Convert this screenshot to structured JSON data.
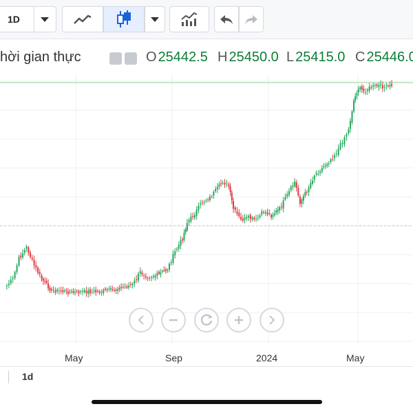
{
  "toolbar": {
    "interval_label": "1D"
  },
  "legend": {
    "title_fragment": "hời gian thực",
    "open_key": "O",
    "open_value": "25442.5",
    "high_key": "H",
    "high_value": "25450.0",
    "low_key": "L",
    "low_value": "25415.0",
    "close_key": "C",
    "close_value": "25446.0",
    "up_color": "#0b7d35"
  },
  "x_axis": {
    "labels": [
      "May",
      "Sep",
      "2024",
      "May"
    ]
  },
  "bottom": {
    "range_label": "1d"
  },
  "chart_data": {
    "type": "candlestick",
    "colors": {
      "up": "#26a65b",
      "down": "#e0383e",
      "grid": "#eceff3",
      "last_price_line": "#8fd18f",
      "dashed_line": "#b8bdc6"
    },
    "points": [
      [
        "2023-01-10",
        16600
      ],
      [
        "2023-01-18",
        16900
      ],
      [
        "2023-01-26",
        17800
      ],
      [
        "2023-02-05",
        18300
      ],
      [
        "2023-02-15",
        17500
      ],
      [
        "2023-02-25",
        16900
      ],
      [
        "2023-03-10",
        16400
      ],
      [
        "2023-03-25",
        16350
      ],
      [
        "2023-04-10",
        16300
      ],
      [
        "2023-04-25",
        16350
      ],
      [
        "2023-05-10",
        16320
      ],
      [
        "2023-05-25",
        16400
      ],
      [
        "2023-06-10",
        16500
      ],
      [
        "2023-06-25",
        16650
      ],
      [
        "2023-07-05",
        17200
      ],
      [
        "2023-07-15",
        17000
      ],
      [
        "2023-07-30",
        17100
      ],
      [
        "2023-08-10",
        17350
      ],
      [
        "2023-08-20",
        18100
      ],
      [
        "2023-08-30",
        18700
      ],
      [
        "2023-09-05",
        19400
      ],
      [
        "2023-09-15",
        19800
      ],
      [
        "2023-09-25",
        20300
      ],
      [
        "2023-10-05",
        20500
      ],
      [
        "2023-10-15",
        20900
      ],
      [
        "2023-10-22",
        21200
      ],
      [
        "2023-10-30",
        21000
      ],
      [
        "2023-11-05",
        20000
      ],
      [
        "2023-11-15",
        19500
      ],
      [
        "2023-11-25",
        19600
      ],
      [
        "2023-12-05",
        19500
      ],
      [
        "2023-12-15",
        19900
      ],
      [
        "2023-12-25",
        19700
      ],
      [
        "2024-01-05",
        20000
      ],
      [
        "2024-01-15",
        20600
      ],
      [
        "2024-01-25",
        21200
      ],
      [
        "2024-02-01",
        20300
      ],
      [
        "2024-02-10",
        20800
      ],
      [
        "2024-02-20",
        21500
      ],
      [
        "2024-03-01",
        21800
      ],
      [
        "2024-03-10",
        22100
      ],
      [
        "2024-03-20",
        22500
      ],
      [
        "2024-03-28",
        23000
      ],
      [
        "2024-04-05",
        23500
      ],
      [
        "2024-04-12",
        24800
      ],
      [
        "2024-04-18",
        25350
      ],
      [
        "2024-04-25",
        25200
      ],
      [
        "2024-05-05",
        25400
      ],
      [
        "2024-05-15",
        25450
      ],
      [
        "2024-05-25",
        25380
      ],
      [
        "2024-06-01",
        25446
      ]
    ],
    "last_close": 25446.0,
    "x_ticks": [
      "May",
      "Sep",
      "2024",
      "May"
    ]
  }
}
